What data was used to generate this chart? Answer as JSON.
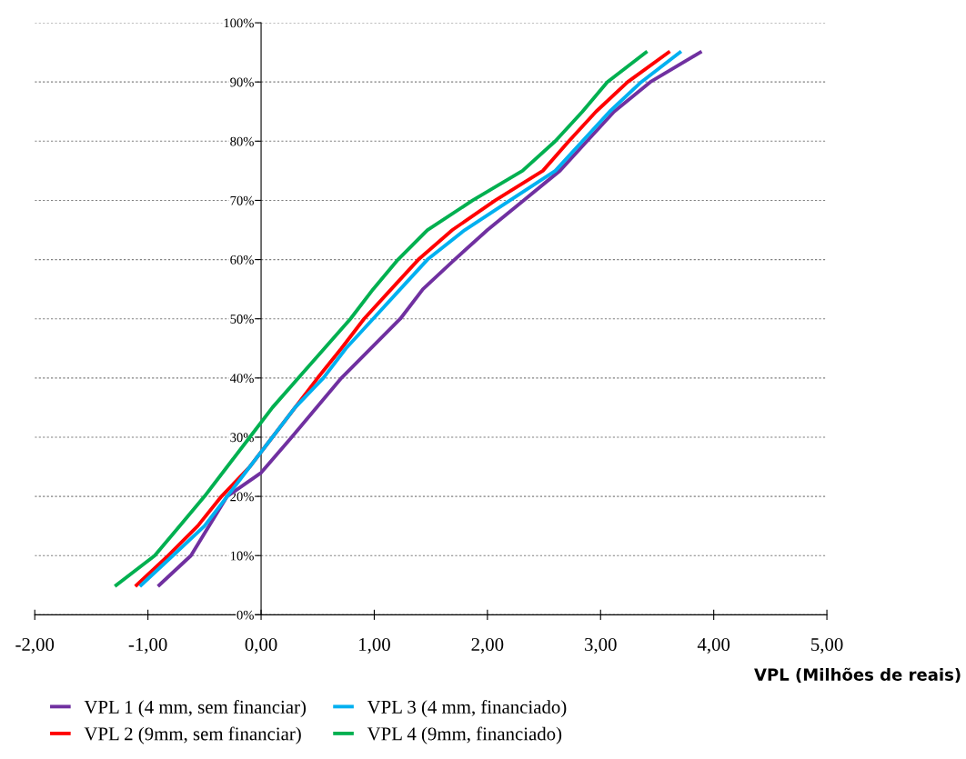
{
  "chart_data": {
    "type": "line",
    "xlabel": "VPL (Milhões de reais)",
    "xlim": [
      -2,
      5
    ],
    "xticks": [
      {
        "value": -2,
        "label": "-2,00"
      },
      {
        "value": -1,
        "label": "-1,00"
      },
      {
        "value": 0,
        "label": "0,00"
      },
      {
        "value": 1,
        "label": "1,00"
      },
      {
        "value": 2,
        "label": "2,00"
      },
      {
        "value": 3,
        "label": "3,00"
      },
      {
        "value": 4,
        "label": "4,00"
      },
      {
        "value": 5,
        "label": "5,00"
      }
    ],
    "ylim": [
      0,
      100
    ],
    "yticks": [
      {
        "value": 0,
        "label": "0%"
      },
      {
        "value": 10,
        "label": "10%"
      },
      {
        "value": 20,
        "label": "20%"
      },
      {
        "value": 30,
        "label": "30%"
      },
      {
        "value": 40,
        "label": "40%"
      },
      {
        "value": 50,
        "label": "50%"
      },
      {
        "value": 60,
        "label": "60%"
      },
      {
        "value": 70,
        "label": "70%"
      },
      {
        "value": 80,
        "label": "80%"
      },
      {
        "value": 90,
        "label": "90%"
      },
      {
        "value": 100,
        "label": "100%"
      }
    ],
    "grid": "y",
    "legend": "bottom",
    "marker": "none",
    "line_style": "solid",
    "series": [
      {
        "name": "VPL 1 (4 mm, sem financiar)",
        "color": "#7030a0",
        "x": [
          -0.9,
          -0.62,
          -0.3,
          0.0,
          0.27,
          0.71,
          1.23,
          1.43,
          1.71,
          2.0,
          2.32,
          2.64,
          2.88,
          3.12,
          3.44,
          3.88
        ],
        "values": [
          5,
          10,
          20,
          24,
          30,
          40,
          50,
          55,
          60,
          65,
          70,
          75,
          80,
          85,
          90,
          95
        ]
      },
      {
        "name": "VPL 2 (9mm, sem financiar)",
        "color": "#ff0000",
        "x": [
          -1.1,
          -0.82,
          -0.56,
          -0.35,
          -0.1,
          0.1,
          0.5,
          0.71,
          0.91,
          1.15,
          1.39,
          1.69,
          2.07,
          2.49,
          2.72,
          2.96,
          3.24,
          3.6
        ],
        "values": [
          5,
          10,
          15,
          20,
          25,
          30,
          40,
          45,
          50,
          55,
          60,
          65,
          70,
          75,
          80,
          85,
          90,
          95
        ]
      },
      {
        "name": "VPL 3 (4 mm, financiado)",
        "color": "#00b0f0",
        "x": [
          -1.06,
          -0.78,
          -0.5,
          -0.3,
          -0.1,
          0.1,
          0.3,
          0.55,
          0.75,
          0.99,
          1.23,
          1.47,
          1.8,
          2.2,
          2.6,
          2.84,
          3.08,
          3.36,
          3.7
        ],
        "values": [
          5,
          10,
          15,
          20,
          25,
          30,
          35,
          40,
          45,
          50,
          55,
          60,
          65,
          70,
          75,
          80,
          85,
          90,
          95
        ]
      },
      {
        "name": "VPL 4 (9mm, financiado)",
        "color": "#00b050",
        "x": [
          -1.28,
          -0.94,
          -0.72,
          -0.5,
          -0.3,
          -0.1,
          0.1,
          0.33,
          0.56,
          0.79,
          0.99,
          1.21,
          1.47,
          1.87,
          2.31,
          2.6,
          2.84,
          3.06,
          3.4
        ],
        "values": [
          5,
          10,
          15,
          20,
          25,
          30,
          35,
          40,
          45,
          50,
          55,
          60,
          65,
          70,
          75,
          80,
          85,
          90,
          95
        ]
      }
    ]
  }
}
